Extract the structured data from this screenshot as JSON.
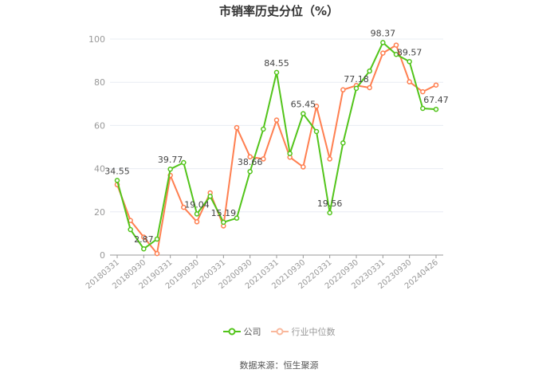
{
  "chart_data": {
    "type": "line",
    "title": "市销率历史分位（%）",
    "x": [
      "20180331",
      "20180630",
      "20180930",
      "20181231",
      "20190331",
      "20190630",
      "20190930",
      "20191231",
      "20200331",
      "20200630",
      "20200930",
      "20201231",
      "20210331",
      "20210630",
      "20210930",
      "20211231",
      "20220331",
      "20220630",
      "20220930",
      "20221231",
      "20230331",
      "20230630",
      "20230930",
      "20231231",
      "20240426"
    ],
    "tick_labels": [
      "20180331",
      "20180930",
      "20190331",
      "20190930",
      "20200331",
      "20200930",
      "20210331",
      "20210930",
      "20220331",
      "20220930",
      "20230331",
      "20230930",
      "20240426"
    ],
    "ylim": [
      0,
      100
    ],
    "yticks": [
      0,
      20,
      40,
      60,
      80,
      100
    ],
    "grid": true,
    "legend_placement": "bottom",
    "series": [
      {
        "name": "公司",
        "color": "#52c41a",
        "values": [
          34.55,
          11.8,
          2.87,
          7.4,
          39.77,
          42.8,
          19.04,
          27.2,
          15.19,
          17.1,
          38.66,
          58.3,
          84.55,
          47.0,
          65.45,
          57.2,
          19.56,
          51.9,
          77.18,
          85.2,
          98.37,
          92.9,
          89.57,
          67.9,
          67.47
        ],
        "labels": {
          "0": "34.55",
          "2": "2.87",
          "4": "39.77",
          "6": "19.04",
          "8": "15.19",
          "10": "38.66",
          "12": "84.55",
          "14": "65.45",
          "16": "19.56",
          "18": "77.18",
          "20": "98.37",
          "22": "89.57",
          "24": "67.47"
        }
      },
      {
        "name": "行业中位数",
        "color": "#ff7f50",
        "values": [
          32.6,
          16.0,
          8.3,
          0.7,
          36.9,
          22.1,
          15.4,
          28.8,
          13.5,
          59.0,
          45.5,
          44.5,
          62.5,
          45.3,
          40.8,
          68.9,
          44.5,
          76.5,
          78.5,
          77.5,
          93.5,
          97.2,
          80.2,
          75.6,
          78.7
        ]
      }
    ]
  },
  "legend": {
    "company": "公司",
    "industry": "行业中位数",
    "industry_legend_color": "#f9b89c"
  },
  "source": "数据来源：恒生聚源"
}
